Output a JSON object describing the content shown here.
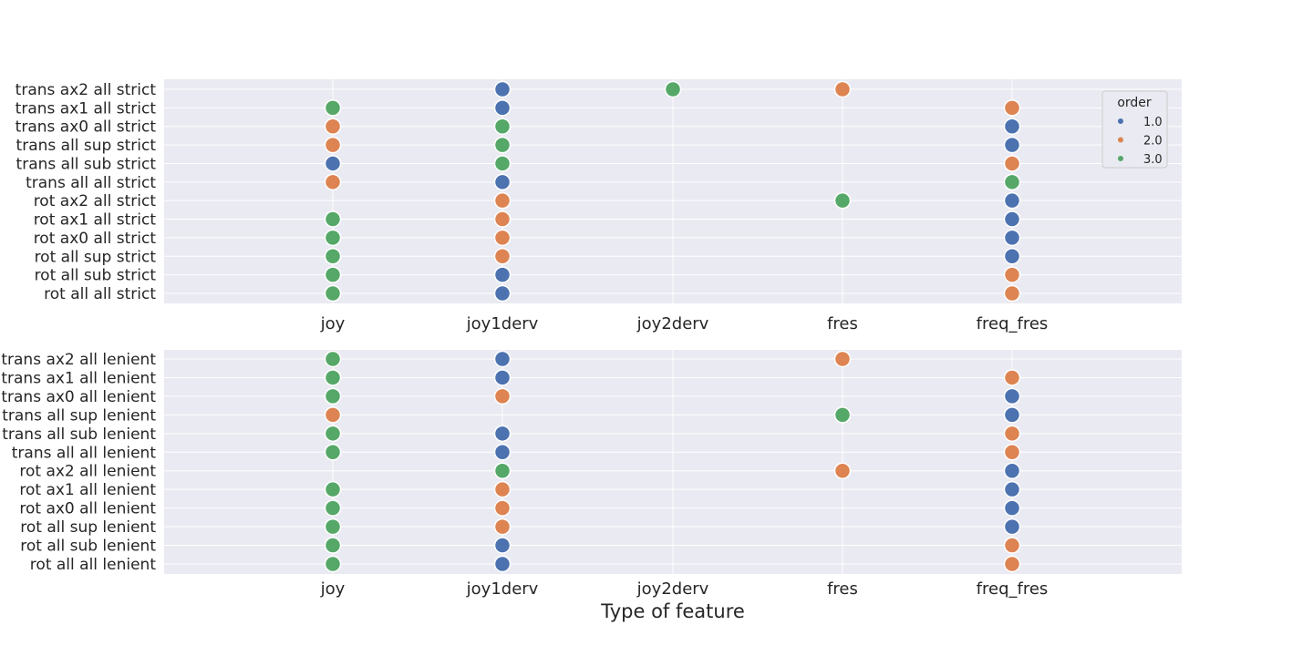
{
  "chart_data": {
    "type": "scatter",
    "xlabel": "Type of feature",
    "x_categories": [
      "joy",
      "joy1derv",
      "joy2derv",
      "fres",
      "freq_fres"
    ],
    "legend": {
      "title": "order",
      "placement": "top-right",
      "entries": [
        {
          "label": "1.0",
          "value": 1,
          "color": "#4c72b0"
        },
        {
          "label": "2.0",
          "value": 2,
          "color": "#dd8452"
        },
        {
          "label": "3.0",
          "value": 3,
          "color": "#55a868"
        }
      ]
    },
    "colors": {
      "1": "#4c72b0",
      "2": "#dd8452",
      "3": "#55a868",
      "background": "#eaeaf2",
      "grid": "#ffffff"
    },
    "grid": true,
    "panels": [
      {
        "name": "strict",
        "y_categories": [
          "trans ax2 all strict",
          "trans ax1 all strict",
          "trans ax0 all strict",
          "trans all sup strict",
          "trans all sub strict",
          "trans all all strict",
          "rot ax2 all strict",
          "rot ax1 all strict",
          "rot ax0 all strict",
          "rot all sup strict",
          "rot all sub strict",
          "rot all all strict"
        ],
        "points": [
          {
            "y": "trans ax2 all strict",
            "x": "joy1derv",
            "order": 1
          },
          {
            "y": "trans ax2 all strict",
            "x": "joy2derv",
            "order": 3
          },
          {
            "y": "trans ax2 all strict",
            "x": "fres",
            "order": 2
          },
          {
            "y": "trans ax1 all strict",
            "x": "joy",
            "order": 3
          },
          {
            "y": "trans ax1 all strict",
            "x": "joy1derv",
            "order": 1
          },
          {
            "y": "trans ax1 all strict",
            "x": "freq_fres",
            "order": 2
          },
          {
            "y": "trans ax0 all strict",
            "x": "joy",
            "order": 2
          },
          {
            "y": "trans ax0 all strict",
            "x": "joy1derv",
            "order": 3
          },
          {
            "y": "trans ax0 all strict",
            "x": "freq_fres",
            "order": 1
          },
          {
            "y": "trans all sup strict",
            "x": "joy",
            "order": 2
          },
          {
            "y": "trans all sup strict",
            "x": "joy1derv",
            "order": 3
          },
          {
            "y": "trans all sup strict",
            "x": "freq_fres",
            "order": 1
          },
          {
            "y": "trans all sub strict",
            "x": "joy",
            "order": 1
          },
          {
            "y": "trans all sub strict",
            "x": "joy1derv",
            "order": 3
          },
          {
            "y": "trans all sub strict",
            "x": "freq_fres",
            "order": 2
          },
          {
            "y": "trans all all strict",
            "x": "joy",
            "order": 2
          },
          {
            "y": "trans all all strict",
            "x": "joy1derv",
            "order": 1
          },
          {
            "y": "trans all all strict",
            "x": "freq_fres",
            "order": 3
          },
          {
            "y": "rot ax2 all strict",
            "x": "joy1derv",
            "order": 2
          },
          {
            "y": "rot ax2 all strict",
            "x": "fres",
            "order": 3
          },
          {
            "y": "rot ax2 all strict",
            "x": "freq_fres",
            "order": 1
          },
          {
            "y": "rot ax1 all strict",
            "x": "joy",
            "order": 3
          },
          {
            "y": "rot ax1 all strict",
            "x": "joy1derv",
            "order": 2
          },
          {
            "y": "rot ax1 all strict",
            "x": "freq_fres",
            "order": 1
          },
          {
            "y": "rot ax0 all strict",
            "x": "joy",
            "order": 3
          },
          {
            "y": "rot ax0 all strict",
            "x": "joy1derv",
            "order": 2
          },
          {
            "y": "rot ax0 all strict",
            "x": "freq_fres",
            "order": 1
          },
          {
            "y": "rot all sup strict",
            "x": "joy",
            "order": 3
          },
          {
            "y": "rot all sup strict",
            "x": "joy1derv",
            "order": 2
          },
          {
            "y": "rot all sup strict",
            "x": "freq_fres",
            "order": 1
          },
          {
            "y": "rot all sub strict",
            "x": "joy",
            "order": 3
          },
          {
            "y": "rot all sub strict",
            "x": "joy1derv",
            "order": 1
          },
          {
            "y": "rot all sub strict",
            "x": "freq_fres",
            "order": 2
          },
          {
            "y": "rot all all strict",
            "x": "joy",
            "order": 3
          },
          {
            "y": "rot all all strict",
            "x": "joy1derv",
            "order": 1
          },
          {
            "y": "rot all all strict",
            "x": "freq_fres",
            "order": 2
          }
        ]
      },
      {
        "name": "lenient",
        "y_categories": [
          "trans ax2 all lenient",
          "trans ax1 all lenient",
          "trans ax0 all lenient",
          "trans all sup lenient",
          "trans all sub lenient",
          "trans all all lenient",
          "rot ax2 all lenient",
          "rot ax1 all lenient",
          "rot ax0 all lenient",
          "rot all sup lenient",
          "rot all sub lenient",
          "rot all all lenient"
        ],
        "points": [
          {
            "y": "trans ax2 all lenient",
            "x": "joy",
            "order": 3
          },
          {
            "y": "trans ax2 all lenient",
            "x": "joy1derv",
            "order": 1
          },
          {
            "y": "trans ax2 all lenient",
            "x": "fres",
            "order": 2
          },
          {
            "y": "trans ax1 all lenient",
            "x": "joy",
            "order": 3
          },
          {
            "y": "trans ax1 all lenient",
            "x": "joy1derv",
            "order": 1
          },
          {
            "y": "trans ax1 all lenient",
            "x": "freq_fres",
            "order": 2
          },
          {
            "y": "trans ax0 all lenient",
            "x": "joy",
            "order": 3
          },
          {
            "y": "trans ax0 all lenient",
            "x": "joy1derv",
            "order": 2
          },
          {
            "y": "trans ax0 all lenient",
            "x": "freq_fres",
            "order": 1
          },
          {
            "y": "trans all sup lenient",
            "x": "joy",
            "order": 2
          },
          {
            "y": "trans all sup lenient",
            "x": "fres",
            "order": 3
          },
          {
            "y": "trans all sup lenient",
            "x": "freq_fres",
            "order": 1
          },
          {
            "y": "trans all sub lenient",
            "x": "joy",
            "order": 3
          },
          {
            "y": "trans all sub lenient",
            "x": "joy1derv",
            "order": 1
          },
          {
            "y": "trans all sub lenient",
            "x": "freq_fres",
            "order": 2
          },
          {
            "y": "trans all all lenient",
            "x": "joy",
            "order": 3
          },
          {
            "y": "trans all all lenient",
            "x": "joy1derv",
            "order": 1
          },
          {
            "y": "trans all all lenient",
            "x": "freq_fres",
            "order": 2
          },
          {
            "y": "rot ax2 all lenient",
            "x": "joy1derv",
            "order": 3
          },
          {
            "y": "rot ax2 all lenient",
            "x": "fres",
            "order": 2
          },
          {
            "y": "rot ax2 all lenient",
            "x": "freq_fres",
            "order": 1
          },
          {
            "y": "rot ax1 all lenient",
            "x": "joy",
            "order": 3
          },
          {
            "y": "rot ax1 all lenient",
            "x": "joy1derv",
            "order": 2
          },
          {
            "y": "rot ax1 all lenient",
            "x": "freq_fres",
            "order": 1
          },
          {
            "y": "rot ax0 all lenient",
            "x": "joy",
            "order": 3
          },
          {
            "y": "rot ax0 all lenient",
            "x": "joy1derv",
            "order": 2
          },
          {
            "y": "rot ax0 all lenient",
            "x": "freq_fres",
            "order": 1
          },
          {
            "y": "rot all sup lenient",
            "x": "joy",
            "order": 3
          },
          {
            "y": "rot all sup lenient",
            "x": "joy1derv",
            "order": 2
          },
          {
            "y": "rot all sup lenient",
            "x": "freq_fres",
            "order": 1
          },
          {
            "y": "rot all sub lenient",
            "x": "joy",
            "order": 3
          },
          {
            "y": "rot all sub lenient",
            "x": "joy1derv",
            "order": 1
          },
          {
            "y": "rot all sub lenient",
            "x": "freq_fres",
            "order": 2
          },
          {
            "y": "rot all all lenient",
            "x": "joy",
            "order": 3
          },
          {
            "y": "rot all all lenient",
            "x": "joy1derv",
            "order": 1
          },
          {
            "y": "rot all all lenient",
            "x": "freq_fres",
            "order": 2
          }
        ]
      }
    ]
  }
}
